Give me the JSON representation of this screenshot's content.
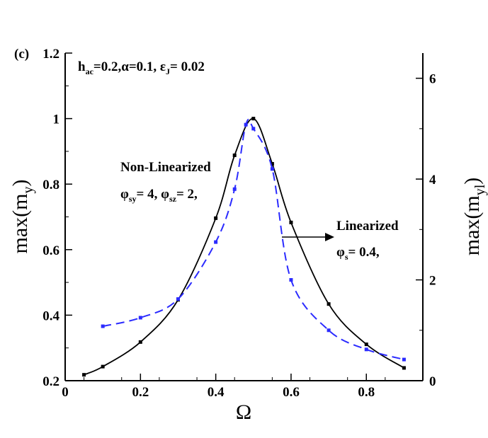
{
  "chart_data": {
    "type": "line",
    "panel_label": "(c)",
    "xlabel": "Ω",
    "ylabel_left": {
      "base": "max(m",
      "sub": "y",
      "tail": ")"
    },
    "ylabel_right": {
      "base": "max(m",
      "sub": "yl",
      "tail": ")"
    },
    "xlim": [
      0,
      0.95
    ],
    "ylim_left": [
      0.2,
      1.2
    ],
    "ylim_right": [
      0,
      6.5
    ],
    "x_ticks": [
      0,
      0.2,
      0.4,
      0.6,
      0.8
    ],
    "x_tick_labels": [
      "0",
      "0.2",
      "0.4",
      "0.6",
      "0.8"
    ],
    "y_left_ticks": [
      0.2,
      0.4,
      0.6,
      0.8,
      1.0,
      1.2
    ],
    "y_left_tick_labels": [
      "0.2",
      "0.4",
      "0.6",
      "0.8",
      "1",
      "1.2"
    ],
    "y_right_ticks": [
      0,
      2,
      4,
      6
    ],
    "y_right_tick_labels": [
      "0",
      "2",
      "4",
      "6"
    ],
    "grid": false,
    "series": [
      {
        "axis": "left",
        "style": "solid",
        "color": "#000000",
        "x": [
          0.05,
          0.1,
          0.2,
          0.3,
          0.4,
          0.45,
          0.5,
          0.55,
          0.6,
          0.7,
          0.8,
          0.9
        ],
        "y": [
          0.218,
          0.243,
          0.318,
          0.447,
          0.696,
          0.888,
          1.0,
          0.862,
          0.683,
          0.434,
          0.311,
          0.239
        ]
      },
      {
        "axis": "right",
        "style": "dashed",
        "color": "#2b2bff",
        "x": [
          0.1,
          0.2,
          0.3,
          0.4,
          0.45,
          0.48,
          0.5,
          0.55,
          0.6,
          0.7,
          0.8,
          0.9
        ],
        "y": [
          1.08,
          1.25,
          1.62,
          2.75,
          3.8,
          5.08,
          5.0,
          4.2,
          2.0,
          1.0,
          0.62,
          0.42
        ]
      }
    ],
    "annotations": {
      "params": {
        "h": "h",
        "h_sub": "ac",
        "rest1": "=0.2,",
        "alpha": "α=0.1, ",
        "eps": "ε",
        "eps_sub": "J",
        "rest2": "= 0.02"
      },
      "nonlin_title": "Non-Linearized",
      "nonlin_params": {
        "p1": "φ",
        "s1": "sy",
        "r1": "= 4, ",
        "p2": "φ",
        "s2": "sz",
        "r2": "= 2,"
      },
      "lin_title": "Linearized",
      "lin_params": {
        "p": "φ",
        "s": "s",
        "r": "= 0.4,"
      }
    }
  }
}
